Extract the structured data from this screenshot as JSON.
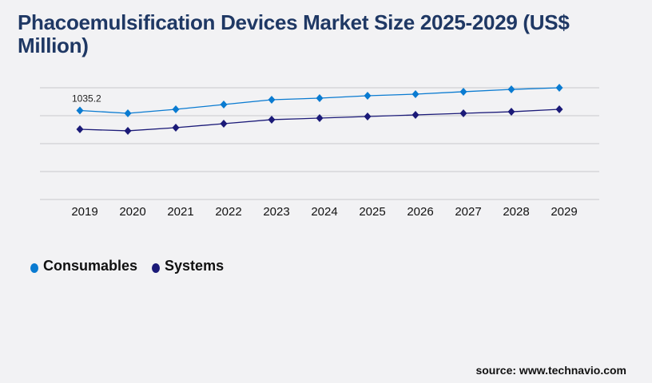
{
  "chart_data": {
    "type": "line",
    "title": "Phacoemulsification Devices Market Size 2025-2029 (US$ Million)",
    "categories": [
      "2019",
      "2020",
      "2021",
      "2022",
      "2023",
      "2024",
      "2025",
      "2026",
      "2027",
      "2028",
      "2029"
    ],
    "ylim": [
      0,
      1300
    ],
    "grid": true,
    "legend_placement": "bottom-left",
    "annotations": [
      {
        "series": "Consumables",
        "category": "2019",
        "text": "1035.2"
      }
    ],
    "series": [
      {
        "name": "Consumables",
        "color": "#0a7bd1",
        "values": [
          1035.2,
          1003,
          1049,
          1105,
          1161,
          1179,
          1207,
          1226,
          1254,
          1281,
          1300
        ]
      },
      {
        "name": "Systems",
        "color": "#1b1a78",
        "values": [
          817,
          799,
          836,
          882,
          929,
          947,
          966,
          984,
          1003,
          1021,
          1049
        ]
      }
    ]
  },
  "source": "source: www.technavio.com"
}
